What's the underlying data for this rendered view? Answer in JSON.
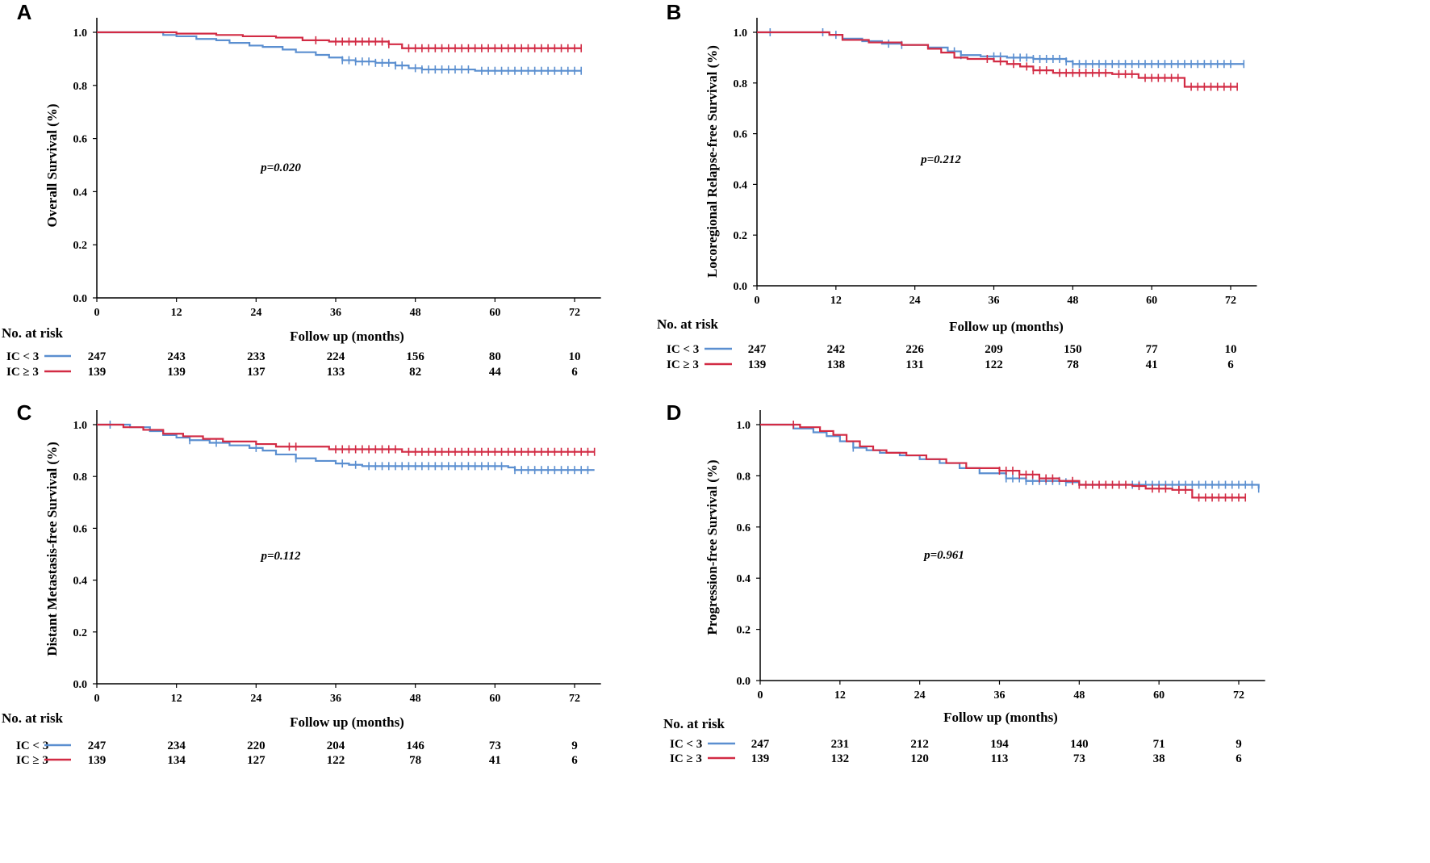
{
  "chart_data": [
    {
      "panel": "A",
      "type": "line",
      "ylabel": "Overall Survival (%)",
      "xlabel": "Follow up (months)",
      "xticks": [
        0,
        12,
        24,
        36,
        48,
        60,
        72
      ],
      "yticks": [
        "0.0",
        "0.2",
        "0.4",
        "0.6",
        "0.8",
        "1.0"
      ],
      "xlim": [
        0,
        75
      ],
      "ylim": [
        0,
        1.05
      ],
      "pvalue": "p=0.020",
      "risk_title": "No. at risk",
      "series": [
        {
          "name": "IC < 3",
          "color": "#5b8fd0",
          "x": [
            0,
            10,
            12,
            15,
            18,
            20,
            23,
            25,
            28,
            30,
            33,
            35,
            37,
            39,
            42,
            45,
            47,
            49,
            55,
            57,
            73
          ],
          "y": [
            1.0,
            0.99,
            0.985,
            0.975,
            0.97,
            0.96,
            0.95,
            0.945,
            0.935,
            0.925,
            0.915,
            0.905,
            0.895,
            0.89,
            0.885,
            0.875,
            0.865,
            0.86,
            0.86,
            0.855,
            0.855
          ],
          "censor_x": [
            37,
            38,
            39,
            40,
            41,
            42,
            43,
            44,
            45,
            46,
            48,
            49,
            50,
            51,
            52,
            53,
            54,
            55,
            56,
            58,
            59,
            60,
            61,
            62,
            63,
            64,
            65,
            66,
            67,
            68,
            69,
            70,
            71,
            72,
            73
          ],
          "risk": [
            "247",
            "243",
            "233",
            "224",
            "156",
            "80",
            "10"
          ]
        },
        {
          "name": "IC ≥ 3",
          "color": "#d22b44",
          "x": [
            0,
            12,
            18,
            22,
            27,
            31,
            35,
            44,
            46,
            73
          ],
          "y": [
            1.0,
            0.995,
            0.99,
            0.985,
            0.98,
            0.97,
            0.965,
            0.955,
            0.94,
            0.94
          ],
          "censor_x": [
            33,
            36,
            37,
            38,
            39,
            40,
            41,
            42,
            43,
            44,
            47,
            48,
            49,
            50,
            51,
            52,
            53,
            54,
            55,
            56,
            57,
            58,
            59,
            60,
            61,
            62,
            63,
            64,
            65,
            66,
            67,
            68,
            69,
            70,
            71,
            72,
            73
          ],
          "risk": [
            "139",
            "139",
            "137",
            "133",
            "82",
            "44",
            "6"
          ]
        }
      ]
    },
    {
      "panel": "B",
      "type": "line",
      "ylabel": "Locoregional Relapse-free Survival (%)",
      "xlabel": "Follow up (months)",
      "xticks": [
        0,
        12,
        24,
        36,
        48,
        60,
        72
      ],
      "yticks": [
        "0.0",
        "0.2",
        "0.4",
        "0.6",
        "0.8",
        "1.0"
      ],
      "xlim": [
        0,
        75
      ],
      "ylim": [
        0,
        1.05
      ],
      "pvalue": "p=0.212",
      "risk_title": "No. at risk",
      "series": [
        {
          "name": "IC < 3",
          "color": "#5b8fd0",
          "x": [
            0,
            11,
            13,
            16,
            19,
            22,
            26,
            29,
            31,
            34,
            38,
            42,
            47,
            48,
            74
          ],
          "y": [
            1.0,
            0.99,
            0.975,
            0.965,
            0.955,
            0.95,
            0.94,
            0.925,
            0.91,
            0.905,
            0.9,
            0.895,
            0.885,
            0.875,
            0.875
          ],
          "censor_x": [
            2,
            10,
            12,
            20,
            22,
            30,
            31,
            36,
            37,
            39,
            40,
            41,
            42,
            43,
            44,
            45,
            46,
            47,
            48,
            49,
            50,
            51,
            52,
            53,
            54,
            55,
            56,
            57,
            58,
            59,
            60,
            61,
            62,
            63,
            64,
            65,
            66,
            67,
            68,
            69,
            70,
            71,
            72,
            74
          ],
          "risk": [
            "247",
            "242",
            "226",
            "209",
            "150",
            "77",
            "10"
          ]
        },
        {
          "name": "IC ≥ 3",
          "color": "#d22b44",
          "x": [
            0,
            11,
            13,
            17,
            22,
            26,
            28,
            30,
            32,
            36,
            38,
            40,
            42,
            45,
            54,
            58,
            65,
            73
          ],
          "y": [
            1.0,
            0.99,
            0.97,
            0.96,
            0.95,
            0.935,
            0.92,
            0.9,
            0.895,
            0.885,
            0.875,
            0.865,
            0.85,
            0.84,
            0.835,
            0.82,
            0.785,
            0.785
          ],
          "censor_x": [
            35,
            37,
            39,
            41,
            42,
            43,
            44,
            46,
            47,
            48,
            49,
            50,
            51,
            52,
            53,
            55,
            56,
            57,
            59,
            60,
            61,
            62,
            63,
            64,
            66,
            67,
            68,
            69,
            70,
            71,
            72,
            73
          ],
          "risk": [
            "139",
            "138",
            "131",
            "122",
            "78",
            "41",
            "6"
          ]
        }
      ]
    },
    {
      "panel": "C",
      "type": "line",
      "ylabel": "Distant Metastasis-free Survival (%)",
      "xlabel": "Follow up (months)",
      "xticks": [
        0,
        12,
        24,
        36,
        48,
        60,
        72
      ],
      "yticks": [
        "0.0",
        "0.2",
        "0.4",
        "0.6",
        "0.8",
        "1.0"
      ],
      "xlim": [
        0,
        75
      ],
      "ylim": [
        0,
        1.05
      ],
      "pvalue": "p=0.112",
      "risk_title": "No. at risk",
      "series": [
        {
          "name": "IC < 3",
          "color": "#5b8fd0",
          "x": [
            0,
            5,
            8,
            10,
            12,
            14,
            17,
            20,
            23,
            25,
            27,
            30,
            33,
            36,
            38,
            40,
            62,
            63,
            75
          ],
          "y": [
            1.0,
            0.99,
            0.975,
            0.96,
            0.95,
            0.94,
            0.93,
            0.92,
            0.91,
            0.9,
            0.885,
            0.87,
            0.86,
            0.85,
            0.845,
            0.84,
            0.835,
            0.825,
            0.825
          ],
          "censor_x": [
            2,
            14,
            18,
            24,
            30,
            37,
            39,
            41,
            42,
            43,
            44,
            45,
            46,
            47,
            48,
            49,
            50,
            51,
            52,
            53,
            54,
            55,
            56,
            57,
            58,
            59,
            60,
            61,
            63,
            64,
            65,
            66,
            67,
            68,
            69,
            70,
            71,
            72,
            73,
            74
          ],
          "risk": [
            "247",
            "234",
            "220",
            "204",
            "146",
            "73",
            "9"
          ]
        },
        {
          "name": "IC ≥ 3",
          "color": "#d22b44",
          "x": [
            0,
            4,
            7,
            10,
            13,
            16,
            19,
            24,
            27,
            35,
            46,
            75
          ],
          "y": [
            1.0,
            0.99,
            0.98,
            0.965,
            0.955,
            0.945,
            0.935,
            0.925,
            0.915,
            0.905,
            0.895,
            0.895
          ],
          "censor_x": [
            29,
            30,
            36,
            37,
            38,
            39,
            40,
            41,
            42,
            43,
            44,
            45,
            47,
            48,
            49,
            50,
            51,
            52,
            53,
            54,
            55,
            56,
            57,
            58,
            59,
            60,
            61,
            62,
            63,
            64,
            65,
            66,
            67,
            68,
            69,
            70,
            71,
            72,
            73,
            74,
            75
          ],
          "risk": [
            "139",
            "134",
            "127",
            "122",
            "78",
            "41",
            "6"
          ]
        }
      ]
    },
    {
      "panel": "D",
      "type": "line",
      "ylabel": "Progression-free Survival (%)",
      "xlabel": "Follow up (months)",
      "xticks": [
        0,
        12,
        24,
        36,
        48,
        60,
        72
      ],
      "yticks": [
        "0.0",
        "0.2",
        "0.4",
        "0.6",
        "0.8",
        "1.0"
      ],
      "xlim": [
        0,
        75
      ],
      "ylim": [
        0,
        1.05
      ],
      "pvalue": "p=0.961",
      "risk_title": "No. at risk",
      "series": [
        {
          "name": "IC < 3",
          "color": "#5b8fd0",
          "x": [
            0,
            5,
            8,
            10,
            12,
            14,
            16,
            18,
            21,
            24,
            27,
            30,
            33,
            37,
            40,
            46,
            48,
            75
          ],
          "y": [
            1.0,
            0.985,
            0.97,
            0.955,
            0.935,
            0.91,
            0.9,
            0.89,
            0.88,
            0.865,
            0.85,
            0.83,
            0.81,
            0.79,
            0.78,
            0.775,
            0.765,
            0.75
          ],
          "censor_x": [
            14,
            37,
            38,
            39,
            40,
            41,
            42,
            43,
            44,
            45,
            46,
            56,
            57,
            58,
            59,
            60,
            61,
            62,
            63,
            64,
            65,
            66,
            67,
            68,
            69,
            70,
            71,
            72,
            73,
            74,
            75
          ],
          "risk": [
            "247",
            "231",
            "212",
            "194",
            "140",
            "71",
            "9"
          ]
        },
        {
          "name": "IC ≥ 3",
          "color": "#d22b44",
          "x": [
            0,
            6,
            9,
            11,
            13,
            15,
            17,
            19,
            22,
            25,
            28,
            31,
            36,
            39,
            42,
            45,
            48,
            56,
            58,
            62,
            65,
            73
          ],
          "y": [
            1.0,
            0.99,
            0.975,
            0.96,
            0.935,
            0.915,
            0.9,
            0.89,
            0.88,
            0.865,
            0.85,
            0.83,
            0.82,
            0.805,
            0.79,
            0.78,
            0.765,
            0.76,
            0.75,
            0.745,
            0.715,
            0.715
          ],
          "censor_x": [
            5,
            36,
            37,
            38,
            39,
            40,
            41,
            42,
            43,
            44,
            47,
            48,
            49,
            50,
            51,
            52,
            53,
            54,
            55,
            57,
            59,
            60,
            61,
            63,
            64,
            66,
            67,
            68,
            69,
            70,
            71,
            72,
            73
          ],
          "risk": [
            "139",
            "132",
            "120",
            "113",
            "73",
            "38",
            "6"
          ]
        }
      ]
    }
  ]
}
